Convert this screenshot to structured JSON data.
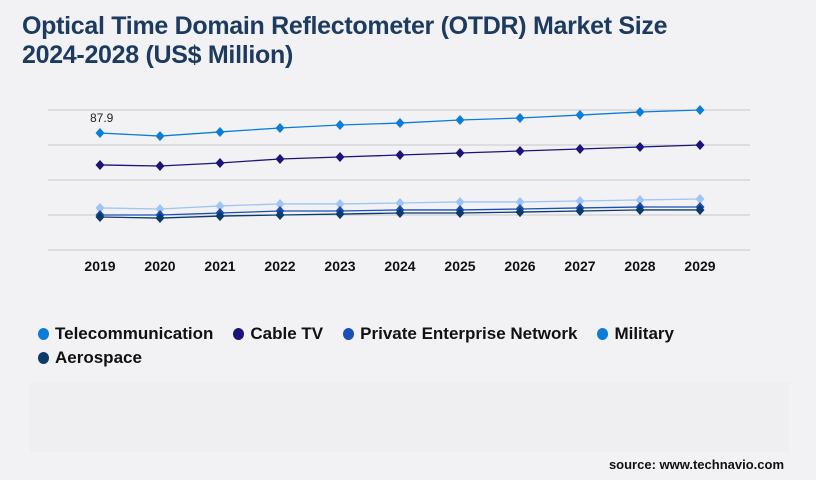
{
  "title_line1": "Optical Time Domain Reflectometer (OTDR) Market Size",
  "title_line2": "2024-2028 (US$ Million)",
  "source": "source: www.technavio.com",
  "chart_data": {
    "type": "line",
    "title": "Optical Time Domain Reflectometer (OTDR) Market Size 2024-2028 (US$ Million)",
    "categories": [
      "2019",
      "2020",
      "2021",
      "2022",
      "2023",
      "2024",
      "2025",
      "2026",
      "2027",
      "2028",
      "2029"
    ],
    "ylim": [
      0,
      105.2
    ],
    "grid": true,
    "legend": "bottom",
    "annotation": "87.9",
    "series": [
      {
        "name": "Telecommunication",
        "color": "#0b7dd6",
        "values": [
          87.9,
          85.6,
          88.7,
          91.7,
          93.9,
          95.4,
          97.7,
          99.2,
          101.4,
          103.7,
          105.2
        ]
      },
      {
        "name": "Cable TV",
        "color": "#1c1478",
        "values": [
          63.9,
          63.1,
          65.4,
          68.4,
          69.9,
          71.4,
          72.9,
          74.4,
          75.9,
          77.4,
          78.9
        ]
      },
      {
        "name": "Private Enterprise Network",
        "color": "#1a4fb5",
        "values": [
          26.3,
          26.3,
          27.8,
          29.3,
          29.3,
          30.1,
          30.1,
          30.8,
          31.6,
          32.3,
          32.3
        ]
      },
      {
        "name": "Military",
        "color": "#9fc5f5",
        "legend_color": "#0b7dd6",
        "values": [
          31.6,
          30.8,
          33.1,
          34.6,
          34.6,
          35.3,
          36.1,
          36.1,
          36.8,
          37.6,
          38.3
        ]
      },
      {
        "name": "Aerospace",
        "color": "#0b3a6b",
        "values": [
          24.8,
          24.0,
          25.5,
          26.3,
          27.0,
          27.8,
          27.8,
          28.5,
          29.3,
          30.1,
          30.1
        ]
      }
    ]
  }
}
